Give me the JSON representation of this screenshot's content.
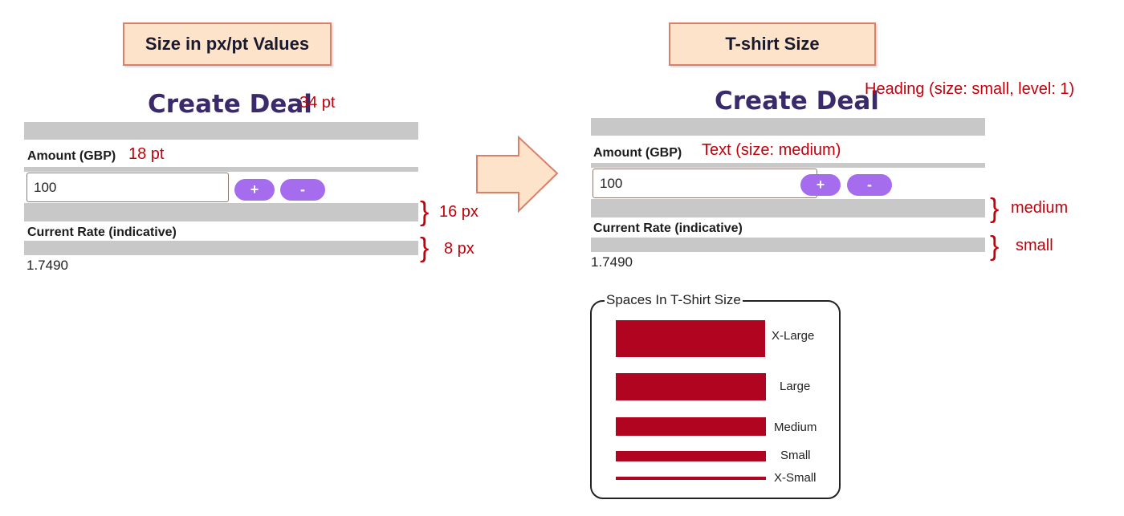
{
  "left": {
    "title": "Size in px/pt Values",
    "heading": "Create Deal",
    "heading_size": "34 pt",
    "amount_label": "Amount (GBP)",
    "amount_size": "18 pt",
    "amount_value": "100",
    "plus_label": "+",
    "minus_label": "-",
    "space_16": "16 px",
    "rate_label": "Current Rate (indicative)",
    "space_8": "8 px",
    "rate_value": "1.7490"
  },
  "right": {
    "title": "T-shirt Size",
    "heading": "Create Deal",
    "heading_size": "Heading (size: small, level: 1)",
    "amount_label": "Amount (GBP)",
    "amount_size": "Text (size: medium)",
    "amount_value": "100",
    "plus_label": "+",
    "minus_label": "-",
    "space_medium": "medium",
    "rate_label": "Current Rate (indicative)",
    "space_small": "small",
    "rate_value": "1.7490"
  },
  "legend": {
    "title": "Spaces In T-Shirt Size",
    "items": [
      {
        "label": "X-Large"
      },
      {
        "label": "Large"
      },
      {
        "label": "Medium"
      },
      {
        "label": "Small"
      },
      {
        "label": "X-Small"
      }
    ]
  },
  "colors": {
    "accent": "#a56ded",
    "annotation": "#c4000b",
    "bar": "#b00420",
    "title_bg": "#fde3c9",
    "arrow_fill": "#fde3c9"
  }
}
